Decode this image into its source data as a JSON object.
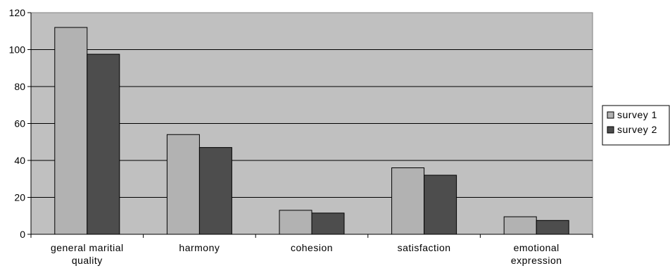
{
  "chart_data": {
    "type": "bar",
    "categories": [
      [
        "general maritial",
        "quality"
      ],
      [
        "harmony"
      ],
      [
        "cohesion"
      ],
      [
        "satisfaction"
      ],
      [
        "emotional",
        "expression"
      ]
    ],
    "series": [
      {
        "name": "survey 1",
        "color": "#b2b2b2",
        "values": [
          112,
          54,
          13,
          36,
          9.5
        ]
      },
      {
        "name": "survey 2",
        "color": "#4d4d4d",
        "values": [
          97.5,
          47,
          11.5,
          32,
          7.5
        ]
      }
    ],
    "ylim": [
      0,
      120
    ],
    "yticks": [
      0,
      20,
      40,
      60,
      80,
      100,
      120
    ],
    "grid": true,
    "legend": "right",
    "plot_background": "#c0c0c0"
  }
}
